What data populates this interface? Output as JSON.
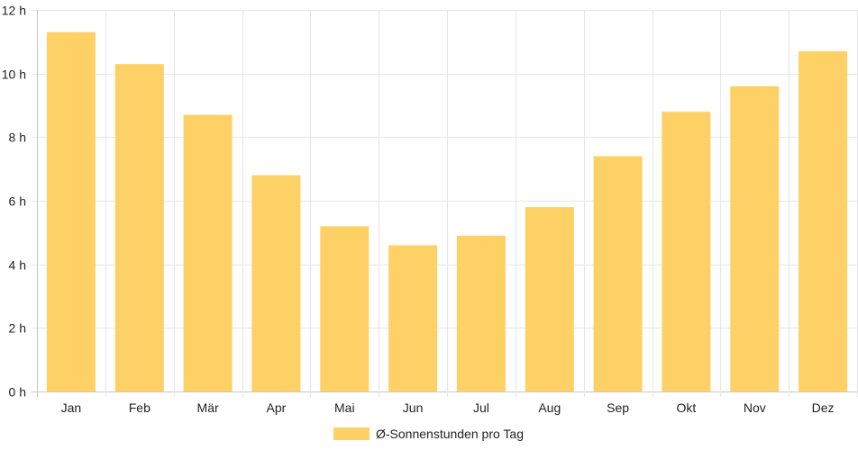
{
  "chart_data": {
    "type": "bar",
    "categories": [
      "Jan",
      "Feb",
      "Mär",
      "Apr",
      "Mai",
      "Jun",
      "Jul",
      "Aug",
      "Sep",
      "Okt",
      "Nov",
      "Dez"
    ],
    "series": [
      {
        "name": "Ø-Sonnenstunden pro Tag",
        "values": [
          11.3,
          10.3,
          8.7,
          6.8,
          5.2,
          4.6,
          4.9,
          5.8,
          7.4,
          8.8,
          9.6,
          10.7
        ]
      }
    ],
    "y_ticks": [
      "0 h",
      "2 h",
      "4 h",
      "6 h",
      "8 h",
      "10 h",
      "12 h"
    ],
    "ylim": [
      0,
      12
    ],
    "grid": true,
    "legend_position": "bottom",
    "colors": {
      "bar": "#fed166",
      "grid": "#e6e6e6",
      "axis": "#c8c8c8",
      "text": "#222222"
    }
  }
}
